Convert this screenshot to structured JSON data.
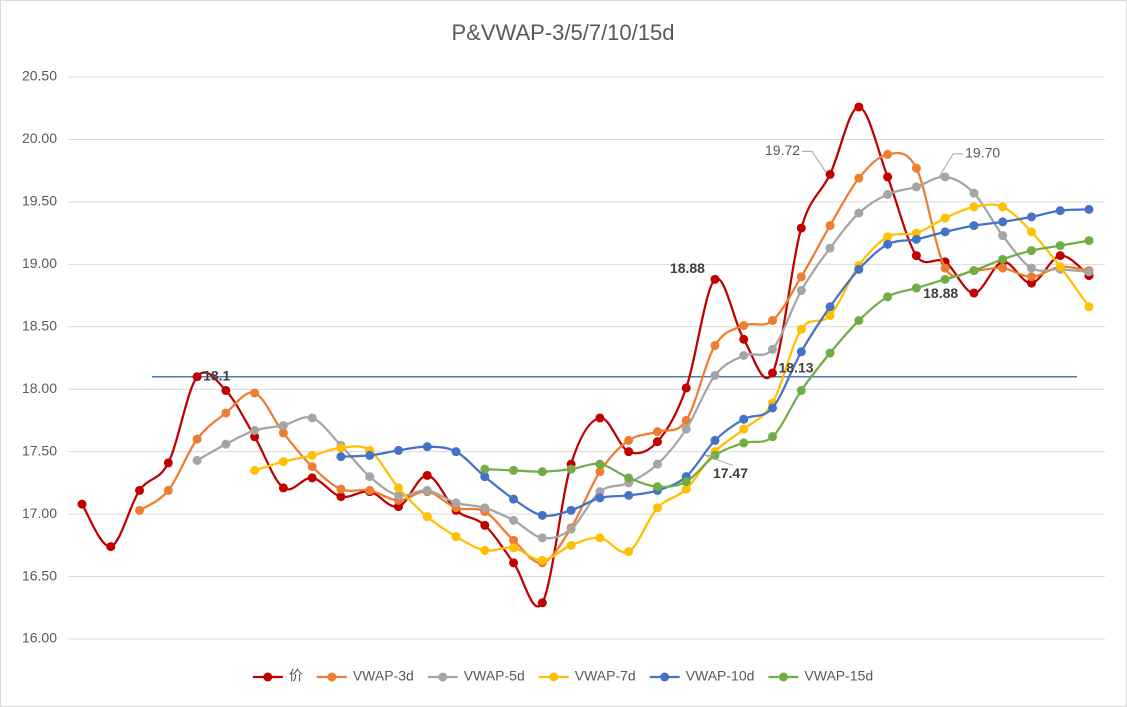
{
  "chart_data": {
    "type": "line",
    "title": "P&VWAP-3/5/7/10/15d",
    "categories": [
      null,
      null,
      null,
      null,
      null,
      null,
      null,
      null,
      null,
      null,
      null,
      null,
      null,
      null,
      null,
      null,
      null,
      null,
      null,
      null,
      null,
      null,
      null,
      null,
      null,
      null,
      null,
      null,
      null,
      null,
      null,
      null,
      null,
      null,
      null,
      null
    ],
    "ylim": [
      16,
      20.5
    ],
    "yticks": [
      {
        "value": 16,
        "label": "16.00"
      },
      {
        "value": 16.5,
        "label": "16.50"
      },
      {
        "value": 17,
        "label": "17.00"
      },
      {
        "value": 17.5,
        "label": "17.50"
      },
      {
        "value": 18,
        "label": "18.00"
      },
      {
        "value": 18.5,
        "label": "18.50"
      },
      {
        "value": 19,
        "label": "19.00"
      },
      {
        "value": 19.5,
        "label": "19.50"
      },
      {
        "value": 20,
        "label": "20.00"
      },
      {
        "value": 20.5,
        "label": "20.50"
      }
    ],
    "grid": true,
    "smooth": true,
    "legend": "bottom",
    "reference_line": {
      "value": 18.1,
      "color": "#4a7ebb"
    },
    "series": [
      {
        "name": "价",
        "color": "#c00000",
        "values": [
          17.08,
          16.74,
          17.19,
          17.41,
          18.1,
          17.99,
          17.62,
          17.21,
          17.29,
          17.14,
          17.18,
          17.06,
          17.31,
          17.03,
          16.91,
          16.61,
          16.29,
          17.4,
          17.77,
          17.5,
          17.58,
          18.01,
          18.88,
          18.4,
          18.13,
          19.29,
          19.72,
          20.26,
          19.7,
          19.07,
          19.02,
          18.77,
          19.02,
          18.85,
          19.07,
          18.91
        ]
      },
      {
        "name": "VWAP-3d",
        "color": "#ed7d31",
        "values": [
          null,
          null,
          17.03,
          17.19,
          17.6,
          17.81,
          17.97,
          17.65,
          17.38,
          17.2,
          17.19,
          17.11,
          17.18,
          17.05,
          17.02,
          16.79,
          16.61,
          16.89,
          17.34,
          17.59,
          17.66,
          17.75,
          18.35,
          18.51,
          18.55,
          18.9,
          19.31,
          19.69,
          19.88,
          19.77,
          18.97,
          18.95,
          18.97,
          18.9,
          18.98,
          18.95
        ]
      },
      {
        "name": "VWAP-5d",
        "color": "#a5a5a5",
        "values": [
          null,
          null,
          null,
          null,
          17.43,
          17.56,
          17.67,
          17.71,
          17.77,
          17.55,
          17.3,
          17.15,
          17.19,
          17.09,
          17.05,
          16.95,
          16.81,
          16.88,
          17.18,
          17.25,
          17.4,
          17.68,
          18.11,
          18.27,
          18.32,
          18.79,
          19.13,
          19.41,
          19.56,
          19.62,
          19.7,
          19.57,
          19.23,
          18.97,
          18.96,
          18.94
        ]
      },
      {
        "name": "VWAP-7d",
        "color": "#ffc000",
        "values": [
          null,
          null,
          null,
          null,
          null,
          null,
          17.35,
          17.42,
          17.47,
          17.53,
          17.51,
          17.21,
          16.98,
          16.82,
          16.71,
          16.73,
          16.63,
          16.75,
          16.81,
          16.7,
          17.05,
          17.2,
          17.5,
          17.68,
          17.89,
          18.48,
          18.59,
          18.99,
          19.22,
          19.25,
          19.37,
          19.46,
          19.46,
          19.26,
          18.98,
          18.66
        ]
      },
      {
        "name": "VWAP-10d",
        "color": "#4472c4",
        "values": [
          null,
          null,
          null,
          null,
          null,
          null,
          null,
          null,
          null,
          17.46,
          17.47,
          17.51,
          17.54,
          17.5,
          17.3,
          17.12,
          16.99,
          17.03,
          17.13,
          17.15,
          17.19,
          17.3,
          17.59,
          17.76,
          17.85,
          18.3,
          18.66,
          18.96,
          19.16,
          19.2,
          19.26,
          19.31,
          19.34,
          19.38,
          19.43,
          19.44
        ]
      },
      {
        "name": "VWAP-15d",
        "color": "#70ad47",
        "values": [
          null,
          null,
          null,
          null,
          null,
          null,
          null,
          null,
          null,
          null,
          null,
          null,
          null,
          null,
          17.36,
          17.35,
          17.34,
          17.36,
          17.4,
          17.29,
          17.22,
          17.26,
          17.47,
          17.57,
          17.62,
          17.99,
          18.29,
          18.55,
          18.74,
          18.81,
          18.88,
          18.95,
          19.04,
          19.11,
          19.15,
          19.19
        ]
      }
    ],
    "annotations": [
      {
        "text": "18.1",
        "series": 0,
        "index": 4
      },
      {
        "text": "18.88",
        "series": 0,
        "index": 22
      },
      {
        "text": "18.13",
        "series": 0,
        "index": 24
      },
      {
        "text": "19.72",
        "series": 0,
        "index": 26
      },
      {
        "text": "19.70",
        "series": 2,
        "index": 30
      },
      {
        "text": "17.47",
        "series": 5,
        "index": 22
      },
      {
        "text": "18.88",
        "series": 5,
        "index": 30
      }
    ]
  }
}
